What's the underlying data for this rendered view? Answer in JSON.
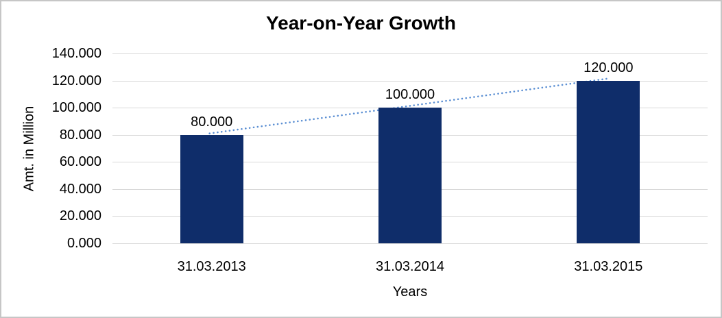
{
  "chart_data": {
    "type": "bar",
    "title": "Year-on-Year Growth",
    "xlabel": "Years",
    "ylabel": "Amt. in Million",
    "categories": [
      "31.03.2013",
      "31.03.2014",
      "31.03.2015"
    ],
    "values": [
      80,
      100,
      120
    ],
    "value_labels": [
      "80.000",
      "100.000",
      "120.000"
    ],
    "ylim": [
      0,
      140
    ],
    "ytick_step": 20,
    "ytick_labels": [
      "140.000",
      "120.000",
      "100.000",
      "80.000",
      "60.000",
      "40.000",
      "20.000",
      "0.000"
    ],
    "grid": true,
    "legend": "none",
    "colors": {
      "bar": "#0f2d6a",
      "trendline": "#5b8fd3",
      "gridline": "#d9d9d9",
      "text": "#000000",
      "frame_border": "#c6c6c6",
      "background": "#ffffff"
    },
    "trendline": {
      "style": "dotted",
      "from": "first-bar-top",
      "to": "last-bar-top"
    }
  }
}
